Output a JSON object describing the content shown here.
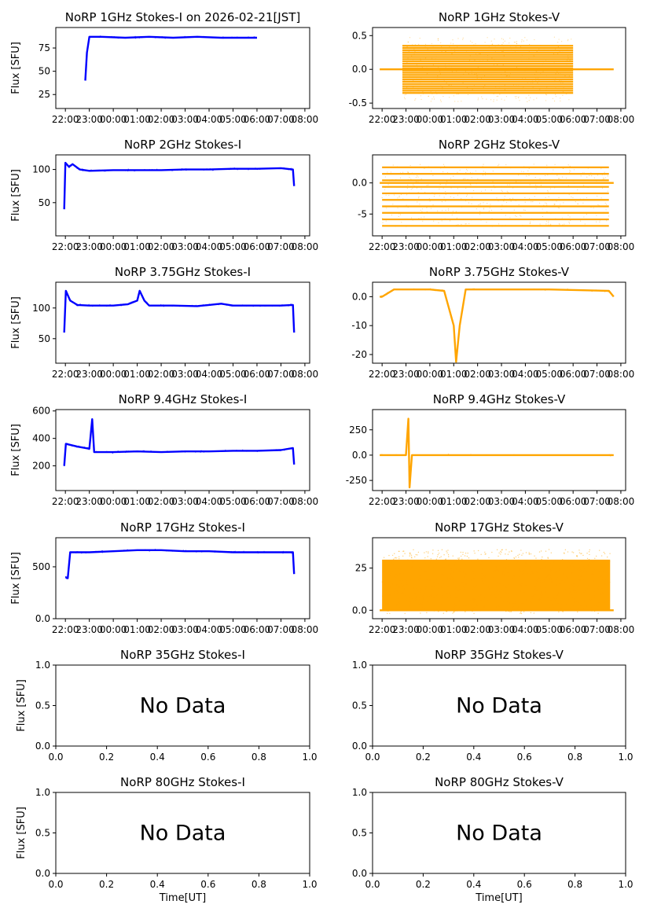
{
  "figure": {
    "xlabel": "Time[UT]",
    "ylabel": "Flux [SFU]",
    "no_data_text": "No Data"
  },
  "colors": {
    "stokes_i": "#0000ff",
    "stokes_v": "#ffa500",
    "axis": "#000000",
    "background": "#ffffff"
  },
  "time_ticks": [
    "22:00",
    "23:00",
    "00:00",
    "01:00",
    "02:00",
    "03:00",
    "04:00",
    "05:00",
    "06:00",
    "07:00",
    "08:00"
  ],
  "chart_data": [
    {
      "type": "scatter",
      "title": "NoRP 1GHz Stokes-I on 2026-02-21[JST]",
      "ylabel": "Flux [SFU]",
      "xlim": [
        "21:36",
        "08:12"
      ],
      "ylim": [
        10,
        97
      ],
      "yticks": [
        25,
        50,
        75
      ],
      "series": [
        {
          "values": [
            [
              22.83,
              40
            ],
            [
              22.9,
              70
            ],
            [
              23.0,
              87
            ],
            [
              23.5,
              87
            ],
            [
              24.5,
              86
            ],
            [
              25.5,
              87
            ],
            [
              26.5,
              86
            ],
            [
              27.5,
              87
            ],
            [
              28.5,
              86
            ],
            [
              29.5,
              86
            ],
            [
              30.0,
              86
            ]
          ]
        }
      ]
    },
    {
      "type": "scatter",
      "title": "NoRP 1GHz Stokes-V",
      "xlim": [
        "21:36",
        "08:12"
      ],
      "ylim": [
        -0.58,
        0.62
      ],
      "yticks": [
        -0.5,
        0.0,
        0.5
      ],
      "series": [
        {
          "values": [
            [
              21.9,
              0
            ],
            [
              22.85,
              0
            ],
            [
              30.0,
              0
            ],
            [
              31.7,
              0
            ]
          ]
        }
      ],
      "scatter_band": {
        "t_start": 22.85,
        "t_end": 30.0,
        "y_min": -0.35,
        "y_max": 0.35,
        "levels": 22,
        "outer_min": -0.48,
        "outer_max": 0.48
      }
    },
    {
      "type": "scatter",
      "title": "NoRP 2GHz Stokes-I",
      "ylabel": "Flux [SFU]",
      "xlim": [
        "21:36",
        "08:12"
      ],
      "ylim": [
        0,
        122
      ],
      "yticks": [
        50,
        100
      ],
      "series": [
        {
          "values": [
            [
              21.95,
              40
            ],
            [
              22.0,
              110
            ],
            [
              22.15,
              104
            ],
            [
              22.3,
              108
            ],
            [
              22.6,
              100
            ],
            [
              23.0,
              98
            ],
            [
              24.0,
              99
            ],
            [
              25.0,
              99
            ],
            [
              26.0,
              99
            ],
            [
              27.0,
              100
            ],
            [
              28.0,
              100
            ],
            [
              29.0,
              101
            ],
            [
              30.0,
              101
            ],
            [
              31.0,
              102
            ],
            [
              31.5,
              100
            ],
            [
              31.55,
              75
            ]
          ]
        }
      ]
    },
    {
      "type": "scatter",
      "title": "NoRP 2GHz Stokes-V",
      "xlim": [
        "21:36",
        "08:12"
      ],
      "ylim": [
        -8.5,
        4.5
      ],
      "yticks": [
        -5,
        0
      ],
      "series": [
        {
          "values": [
            [
              21.9,
              0
            ],
            [
              22.0,
              0
            ],
            [
              31.5,
              0
            ],
            [
              31.7,
              0
            ]
          ]
        }
      ],
      "scatter_band": {
        "t_start": 22.0,
        "t_end": 31.5,
        "y_min": -6.9,
        "y_max": 2.5,
        "levels": 10,
        "outer_min": -7.0,
        "outer_max": 3.0
      }
    },
    {
      "type": "scatter",
      "title": "NoRP 3.75GHz Stokes-I",
      "ylabel": "Flux [SFU]",
      "xlim": [
        "21:36",
        "08:12"
      ],
      "ylim": [
        10,
        142
      ],
      "yticks": [
        50,
        100
      ],
      "series": [
        {
          "values": [
            [
              21.95,
              60
            ],
            [
              22.02,
              128
            ],
            [
              22.2,
              112
            ],
            [
              22.5,
              105
            ],
            [
              23.0,
              104
            ],
            [
              24.0,
              104
            ],
            [
              24.6,
              106
            ],
            [
              25.0,
              112
            ],
            [
              25.1,
              128
            ],
            [
              25.3,
              112
            ],
            [
              25.5,
              104
            ],
            [
              26.5,
              104
            ],
            [
              27.5,
              103
            ],
            [
              28.0,
              105
            ],
            [
              28.5,
              107
            ],
            [
              29.0,
              104
            ],
            [
              30.0,
              104
            ],
            [
              31.0,
              104
            ],
            [
              31.5,
              105
            ],
            [
              31.55,
              60
            ]
          ]
        }
      ]
    },
    {
      "type": "scatter",
      "title": "NoRP 3.75GHz Stokes-V",
      "xlim": [
        "21:36",
        "08:12"
      ],
      "ylim": [
        -23,
        5
      ],
      "yticks": [
        -20,
        -10,
        0
      ],
      "series": [
        {
          "values": [
            [
              21.9,
              0
            ],
            [
              22.0,
              0
            ],
            [
              22.5,
              2.5
            ],
            [
              24.0,
              2.5
            ],
            [
              24.6,
              2
            ],
            [
              25.0,
              -10
            ],
            [
              25.1,
              -22.5
            ],
            [
              25.25,
              -10
            ],
            [
              25.5,
              2.5
            ],
            [
              27.0,
              2.5
            ],
            [
              29.0,
              2.5
            ],
            [
              31.5,
              2
            ],
            [
              31.7,
              0
            ]
          ]
        }
      ]
    },
    {
      "type": "scatter",
      "title": "NoRP 9.4GHz Stokes-I",
      "ylabel": "Flux [SFU]",
      "xlim": [
        "21:36",
        "08:12"
      ],
      "ylim": [
        20,
        610
      ],
      "yticks": [
        200,
        400,
        600
      ],
      "series": [
        {
          "values": [
            [
              21.95,
              200
            ],
            [
              22.02,
              360
            ],
            [
              22.5,
              340
            ],
            [
              23.0,
              325
            ],
            [
              23.12,
              540
            ],
            [
              23.2,
              300
            ],
            [
              24.0,
              300
            ],
            [
              25.0,
              305
            ],
            [
              26.0,
              300
            ],
            [
              27.0,
              305
            ],
            [
              28.0,
              305
            ],
            [
              29.0,
              310
            ],
            [
              30.0,
              310
            ],
            [
              31.0,
              315
            ],
            [
              31.5,
              330
            ],
            [
              31.55,
              210
            ]
          ]
        }
      ]
    },
    {
      "type": "scatter",
      "title": "NoRP 9.4GHz Stokes-V",
      "xlim": [
        "21:36",
        "08:12"
      ],
      "ylim": [
        -350,
        450
      ],
      "yticks": [
        -250,
        0,
        250
      ],
      "series": [
        {
          "values": [
            [
              21.9,
              0
            ],
            [
              23.0,
              0
            ],
            [
              23.1,
              360
            ],
            [
              23.15,
              -320
            ],
            [
              23.25,
              0
            ],
            [
              31.5,
              0
            ],
            [
              31.7,
              0
            ]
          ]
        }
      ]
    },
    {
      "type": "scatter",
      "title": "NoRP 17GHz Stokes-I",
      "ylabel": "Flux [SFU]",
      "xlim": [
        "21:36",
        "08:12"
      ],
      "ylim": [
        0,
        780
      ],
      "yticks": [
        0,
        500
      ],
      "series": [
        {
          "values": [
            [
              22.0,
              400
            ],
            [
              22.1,
              390
            ],
            [
              22.2,
              640
            ],
            [
              23.0,
              640
            ],
            [
              24.0,
              650
            ],
            [
              25.0,
              660
            ],
            [
              26.0,
              660
            ],
            [
              27.0,
              650
            ],
            [
              28.0,
              650
            ],
            [
              29.0,
              640
            ],
            [
              30.0,
              640
            ],
            [
              31.0,
              640
            ],
            [
              31.5,
              640
            ],
            [
              31.55,
              430
            ]
          ]
        }
      ]
    },
    {
      "type": "scatter",
      "title": "NoRP 17GHz Stokes-V",
      "xlim": [
        "21:36",
        "08:12"
      ],
      "ylim": [
        -5,
        43
      ],
      "yticks": [
        0,
        25
      ],
      "series": [
        {
          "values": [
            [
              21.9,
              0
            ],
            [
              31.7,
              0
            ]
          ]
        }
      ],
      "scatter_band": {
        "t_start": 22.0,
        "t_end": 31.55,
        "y_min": 0,
        "y_max": 30,
        "levels": 0,
        "outer_min": -2,
        "outer_max": 36
      }
    },
    {
      "type": "scatter",
      "title": "NoRP 35GHz Stokes-I",
      "ylabel": "Flux [SFU]",
      "xlim": [
        0.0,
        1.0
      ],
      "ylim": [
        0.0,
        1.0
      ],
      "yticks": [
        0.0,
        0.5,
        1.0
      ],
      "xticks": [
        0.0,
        0.2,
        0.4,
        0.6,
        0.8,
        1.0
      ],
      "no_data": true,
      "series": []
    },
    {
      "type": "scatter",
      "title": "NoRP 35GHz Stokes-V",
      "xlim": [
        0.0,
        1.0
      ],
      "ylim": [
        0.0,
        1.0
      ],
      "yticks": [
        0.0,
        0.5,
        1.0
      ],
      "xticks": [
        0.0,
        0.2,
        0.4,
        0.6,
        0.8,
        1.0
      ],
      "no_data": true,
      "series": []
    },
    {
      "type": "scatter",
      "title": "NoRP 80GHz Stokes-I",
      "ylabel": "Flux [SFU]",
      "xlabel": "Time[UT]",
      "xlim": [
        0.0,
        1.0
      ],
      "ylim": [
        0.0,
        1.0
      ],
      "yticks": [
        0.0,
        0.5,
        1.0
      ],
      "xticks": [
        0.0,
        0.2,
        0.4,
        0.6,
        0.8,
        1.0
      ],
      "no_data": true,
      "series": []
    },
    {
      "type": "scatter",
      "title": "NoRP 80GHz Stokes-V",
      "xlabel": "Time[UT]",
      "xlim": [
        0.0,
        1.0
      ],
      "ylim": [
        0.0,
        1.0
      ],
      "yticks": [
        0.0,
        0.5,
        1.0
      ],
      "xticks": [
        0.0,
        0.2,
        0.4,
        0.6,
        0.8,
        1.0
      ],
      "no_data": true,
      "series": []
    }
  ]
}
